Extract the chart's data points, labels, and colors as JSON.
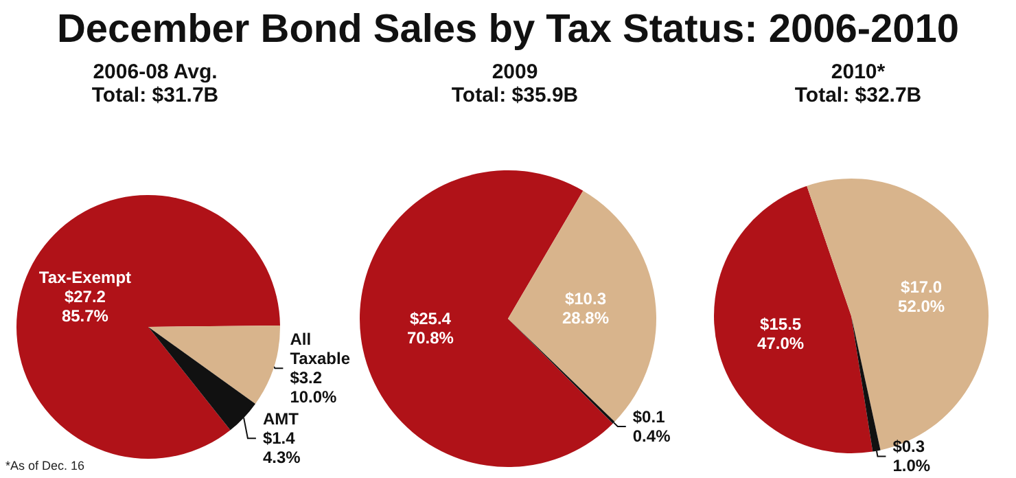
{
  "chart_data": [
    {
      "type": "other",
      "title": "December Bond Sales by Tax Status: 2006-2010",
      "annotations": [
        "*As of Dec. 16"
      ]
    },
    {
      "type": "pie",
      "title": "2006-08 Avg.",
      "subtitle": "Total: $31.7B",
      "categories": [
        "Tax-Exempt",
        "All Taxable",
        "AMT"
      ],
      "values": [
        27.2,
        3.2,
        1.4
      ],
      "colors": [
        "#b01218",
        "#d8b48c",
        "#111111"
      ],
      "value_labels": [
        "$27.2\n85.7%",
        "$3.2\n10.0%",
        "$1.4\n4.3%"
      ]
    },
    {
      "type": "pie",
      "title": "2009",
      "subtitle": "Total: $35.9B",
      "categories": [
        null,
        null,
        null
      ],
      "values": [
        25.4,
        10.3,
        0.1
      ],
      "colors": [
        "#b01218",
        "#d8b48c",
        "#111111"
      ],
      "value_labels": [
        "$25.4\n70.8%",
        "$10.3\n28.8%",
        "$0.1\n0.4%"
      ]
    },
    {
      "type": "pie",
      "title": "2010*",
      "subtitle": "Total: $32.7B",
      "categories": [
        null,
        null,
        null
      ],
      "values": [
        15.5,
        17.0,
        0.3
      ],
      "colors": [
        "#b01218",
        "#d8b48c",
        "#111111"
      ],
      "value_labels": [
        "$15.5\n47.0%",
        "$17.0\n52.0%",
        "$0.3\n1.0%"
      ]
    }
  ]
}
